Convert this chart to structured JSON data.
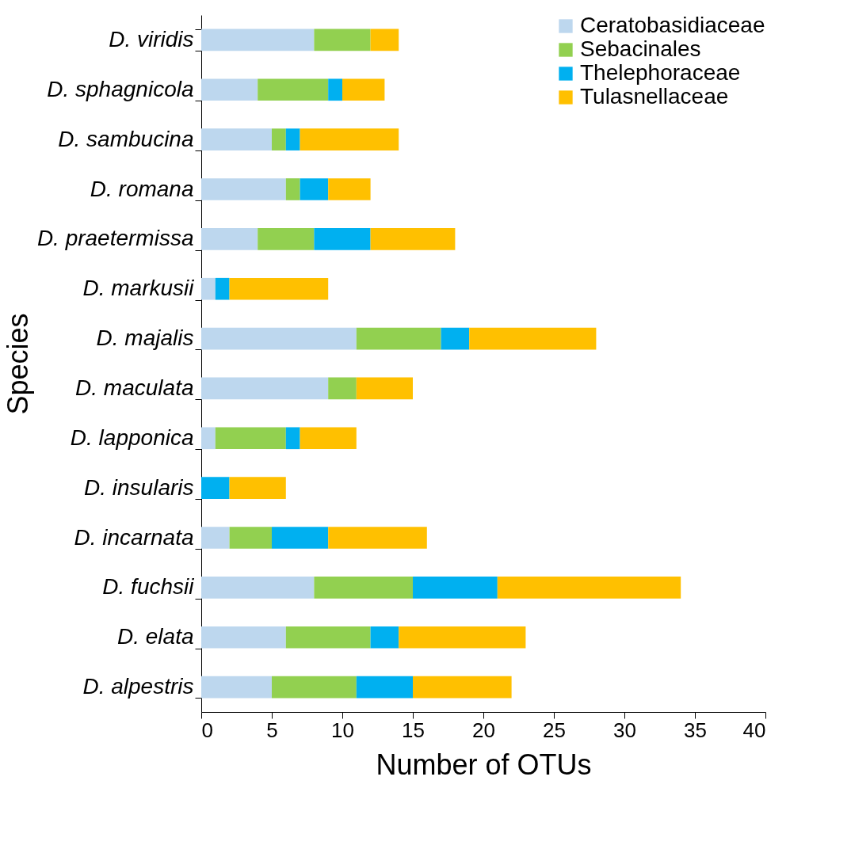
{
  "chart_data": {
    "type": "bar",
    "orientation": "horizontal",
    "stacked": true,
    "xlabel": "Number of OTUs",
    "ylabel": "Species",
    "categories": [
      "D. viridis",
      "D. sphagnicola",
      "D. sambucina",
      "D. romana",
      "D. praetermissa",
      "D. markusii",
      "D. majalis",
      "D. maculata",
      "D. lapponica",
      "D. insularis",
      "D. incarnata",
      "D. fuchsii",
      "D. elata",
      "D. alpestris"
    ],
    "series": [
      {
        "name": "Ceratobasidiaceae",
        "color": "#bdd7ee",
        "values": [
          8,
          4,
          5,
          6,
          4,
          1,
          11,
          9,
          1,
          0,
          2,
          8,
          6,
          5
        ]
      },
      {
        "name": "Sebacinales",
        "color": "#92d050",
        "values": [
          4,
          5,
          1,
          1,
          4,
          0,
          6,
          2,
          5,
          0,
          3,
          7,
          6,
          6
        ]
      },
      {
        "name": "Thelephoraceae",
        "color": "#00b0f0",
        "values": [
          0,
          1,
          1,
          2,
          4,
          1,
          2,
          0,
          1,
          2,
          4,
          6,
          2,
          4
        ]
      },
      {
        "name": "Tulasnellaceae",
        "color": "#ffc000",
        "values": [
          2,
          3,
          7,
          3,
          6,
          7,
          9,
          4,
          4,
          4,
          7,
          13,
          9,
          7
        ]
      }
    ],
    "xlim": [
      0,
      40
    ],
    "xticks": [
      0,
      5,
      10,
      15,
      20,
      25,
      30,
      35,
      40
    ],
    "grid": false,
    "legend": "top right"
  }
}
